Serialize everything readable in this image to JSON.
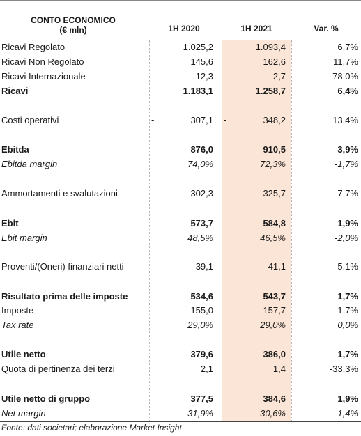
{
  "header": {
    "title_line1": "CONTO ECONOMICO",
    "title_line2": "(€ mln)",
    "col1": "1H 2020",
    "col2": "1H 2021",
    "col3": "Var. %"
  },
  "rows": [
    {
      "label": "Ricavi Regolato",
      "v1": "1.025,2",
      "v2": "1.093,4",
      "v3": "6,7%"
    },
    {
      "label": "Ricavi Non Regolato",
      "v1": "145,6",
      "v2": "162,6",
      "v3": "11,7%"
    },
    {
      "label": "Ricavi Internazionale",
      "v1": "12,3",
      "v2": "2,7",
      "v3": "-78,0%"
    },
    {
      "label": "Ricavi",
      "v1": "1.183,1",
      "v2": "1.258,7",
      "v3": "6,4%"
    },
    {
      "label": "Costi operativi",
      "v1": "307,1",
      "v2": "348,2",
      "v3": "13,4%",
      "dash": "-"
    },
    {
      "label": "Ebitda",
      "v1": "876,0",
      "v2": "910,5",
      "v3": "3,9%"
    },
    {
      "label": "Ebitda margin",
      "v1": "74,0%",
      "v2": "72,3%",
      "v3": "-1,7%"
    },
    {
      "label": "Ammortamenti e svalutazioni",
      "v1": "302,3",
      "v2": "325,7",
      "v3": "7,7%",
      "dash": "-"
    },
    {
      "label": "Ebit",
      "v1": "573,7",
      "v2": "584,8",
      "v3": "1,9%"
    },
    {
      "label": "Ebit margin",
      "v1": "48,5%",
      "v2": "46,5%",
      "v3": "-2,0%"
    },
    {
      "label": "Proventi/(Oneri) finanziari netti",
      "v1": "39,1",
      "v2": "41,1",
      "v3": "5,1%",
      "dash": "-"
    },
    {
      "label": "Risultato prima delle imposte",
      "v1": "534,6",
      "v2": "543,7",
      "v3": "1,7%"
    },
    {
      "label": "Imposte",
      "v1": "155,0",
      "v2": "157,7",
      "v3": "1,7%",
      "dash": "-"
    },
    {
      "label": "Tax rate",
      "v1": "29,0%",
      "v2": "29,0%",
      "v3": "0,0%"
    },
    {
      "label": "Utile netto",
      "v1": "379,6",
      "v2": "386,0",
      "v3": "1,7%"
    },
    {
      "label": "Quota di pertinenza dei terzi",
      "v1": "2,1",
      "v2": "1,4",
      "v3": "-33,3%"
    },
    {
      "label": "Utile netto di gruppo",
      "v1": "377,5",
      "v2": "384,6",
      "v3": "1,9%"
    },
    {
      "label": "Net margin",
      "v1": "31,9%",
      "v2": "30,6%",
      "v3": "-1,4%"
    }
  ],
  "footer": "Fonte: dati societari; elaborazione Market Insight"
}
